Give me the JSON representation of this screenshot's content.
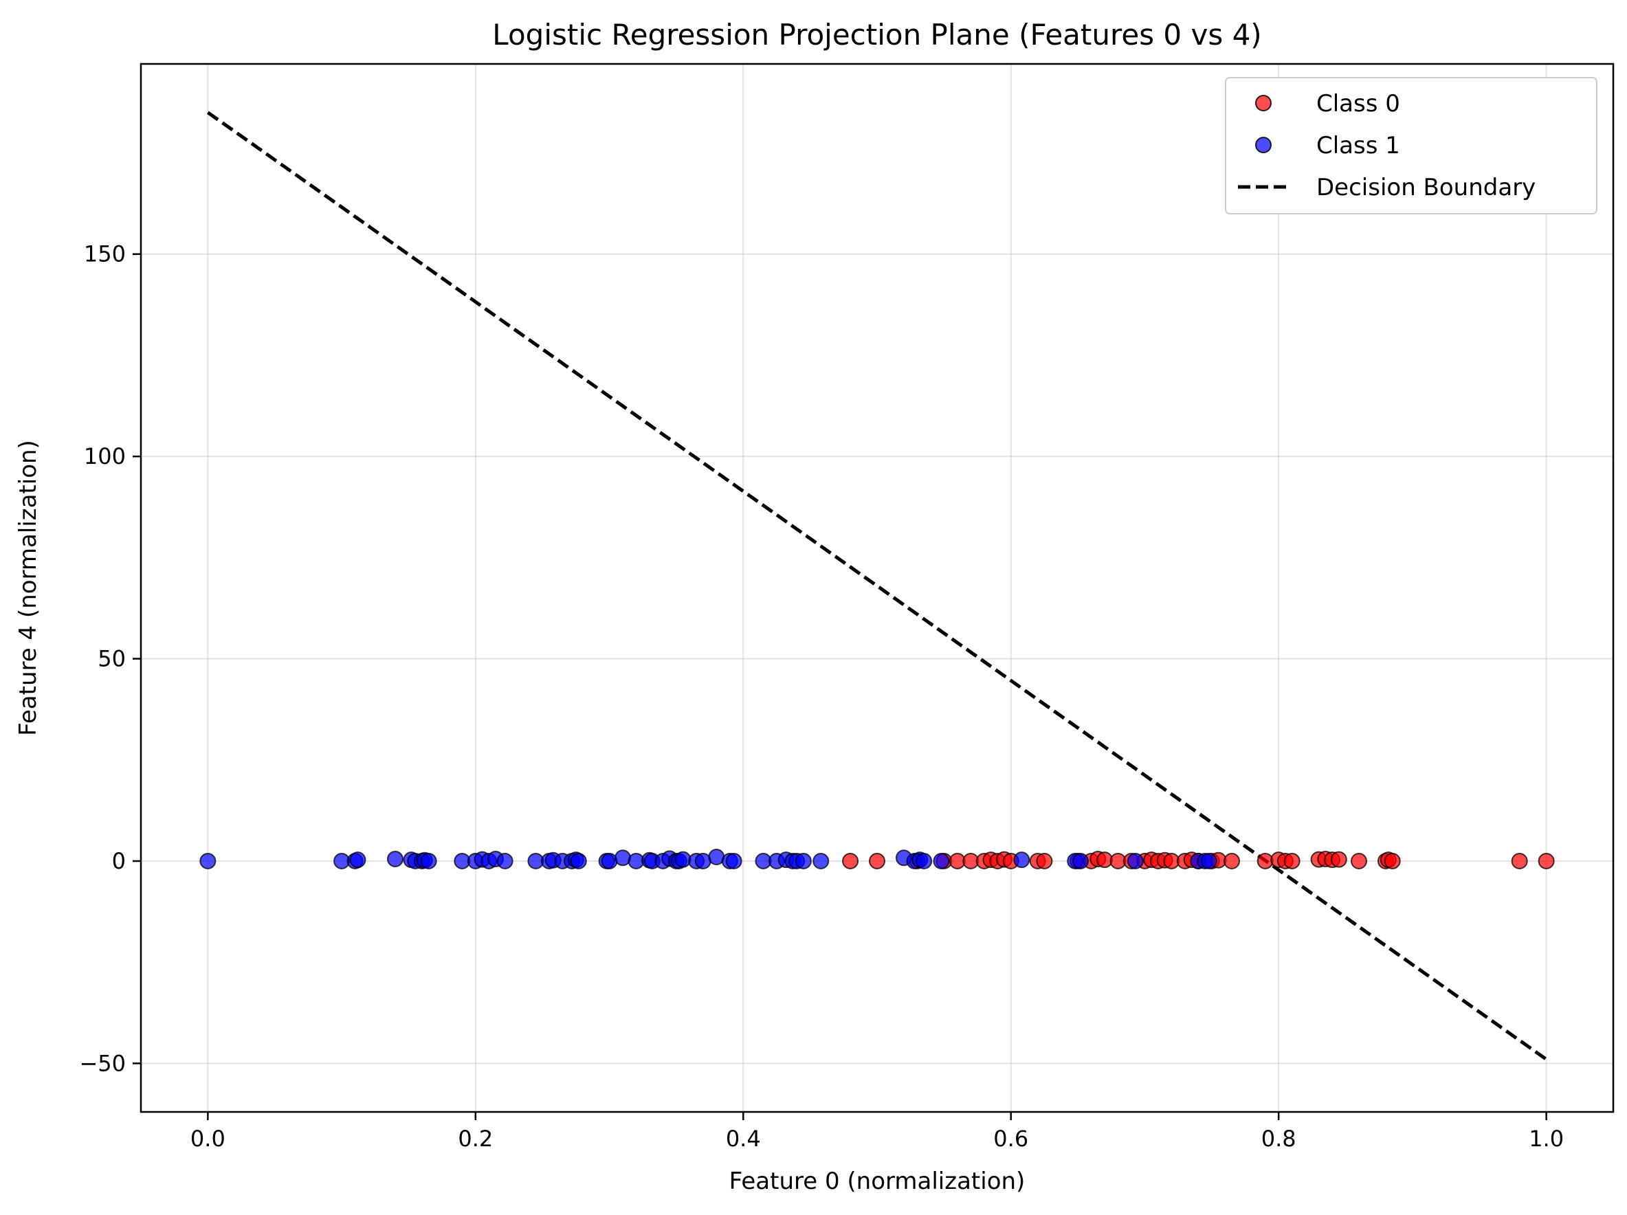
{
  "chart_data": {
    "type": "scatter",
    "title": "Logistic Regression Projection Plane (Features 0 vs 4)",
    "xlabel": "Feature 0 (normalization)",
    "ylabel": "Feature 4 (normalization)",
    "xlim": [
      -0.05,
      1.05
    ],
    "ylim": [
      -62,
      197
    ],
    "xticks": [
      0.0,
      0.2,
      0.4,
      0.6,
      0.8,
      1.0
    ],
    "xtick_labels": [
      "0.0",
      "0.2",
      "0.4",
      "0.6",
      "0.8",
      "1.0"
    ],
    "yticks": [
      -50,
      0,
      50,
      100,
      150
    ],
    "ytick_labels": [
      "−50",
      "0",
      "50",
      "100",
      "150"
    ],
    "grid": true,
    "legend_position": "top-right",
    "series": [
      {
        "name": "Class 0",
        "color": "#ff0000",
        "marker": "circle",
        "points": [
          [
            0.48,
            0
          ],
          [
            0.5,
            0
          ],
          [
            0.53,
            0
          ],
          [
            0.55,
            0
          ],
          [
            0.56,
            0
          ],
          [
            0.57,
            0
          ],
          [
            0.58,
            0
          ],
          [
            0.585,
            0.3
          ],
          [
            0.59,
            0
          ],
          [
            0.595,
            0.4
          ],
          [
            0.6,
            0
          ],
          [
            0.62,
            0
          ],
          [
            0.625,
            0
          ],
          [
            0.65,
            0
          ],
          [
            0.66,
            0
          ],
          [
            0.665,
            0.5
          ],
          [
            0.67,
            0.3
          ],
          [
            0.68,
            0
          ],
          [
            0.69,
            0
          ],
          [
            0.7,
            0
          ],
          [
            0.705,
            0.3
          ],
          [
            0.71,
            0
          ],
          [
            0.715,
            0.2
          ],
          [
            0.72,
            0
          ],
          [
            0.73,
            0
          ],
          [
            0.735,
            0.3
          ],
          [
            0.74,
            0
          ],
          [
            0.75,
            0
          ],
          [
            0.755,
            0.2
          ],
          [
            0.765,
            0
          ],
          [
            0.79,
            0
          ],
          [
            0.8,
            0.3
          ],
          [
            0.805,
            0
          ],
          [
            0.81,
            0
          ],
          [
            0.83,
            0.4
          ],
          [
            0.835,
            0.5
          ],
          [
            0.84,
            0.3
          ],
          [
            0.845,
            0.4
          ],
          [
            0.86,
            0
          ],
          [
            0.88,
            0
          ],
          [
            0.882,
            0.3
          ],
          [
            0.885,
            0
          ],
          [
            0.98,
            0
          ],
          [
            1.0,
            0
          ]
        ]
      },
      {
        "name": "Class 1",
        "color": "#0000ff",
        "marker": "circle",
        "points": [
          [
            0.0,
            0
          ],
          [
            0.1,
            0
          ],
          [
            0.11,
            0
          ],
          [
            0.112,
            0.3
          ],
          [
            0.14,
            0.5
          ],
          [
            0.152,
            0.3
          ],
          [
            0.155,
            0
          ],
          [
            0.16,
            0
          ],
          [
            0.162,
            0.2
          ],
          [
            0.165,
            0
          ],
          [
            0.19,
            0
          ],
          [
            0.2,
            0
          ],
          [
            0.205,
            0.4
          ],
          [
            0.21,
            0
          ],
          [
            0.215,
            0.5
          ],
          [
            0.222,
            0
          ],
          [
            0.245,
            0
          ],
          [
            0.255,
            0
          ],
          [
            0.258,
            0.2
          ],
          [
            0.265,
            0
          ],
          [
            0.272,
            0
          ],
          [
            0.275,
            0.3
          ],
          [
            0.277,
            0
          ],
          [
            0.298,
            0
          ],
          [
            0.3,
            0
          ],
          [
            0.31,
            0.8
          ],
          [
            0.32,
            0
          ],
          [
            0.33,
            0.2
          ],
          [
            0.332,
            0
          ],
          [
            0.34,
            0
          ],
          [
            0.345,
            0.6
          ],
          [
            0.35,
            0
          ],
          [
            0.352,
            0
          ],
          [
            0.355,
            0.4
          ],
          [
            0.365,
            0
          ],
          [
            0.37,
            0
          ],
          [
            0.38,
            1.0
          ],
          [
            0.39,
            0
          ],
          [
            0.393,
            0
          ],
          [
            0.415,
            0
          ],
          [
            0.425,
            0
          ],
          [
            0.432,
            0.3
          ],
          [
            0.437,
            0
          ],
          [
            0.44,
            0
          ],
          [
            0.445,
            0
          ],
          [
            0.458,
            0
          ],
          [
            0.52,
            0.8
          ],
          [
            0.528,
            0
          ],
          [
            0.532,
            0.3
          ],
          [
            0.535,
            0
          ],
          [
            0.548,
            0
          ],
          [
            0.608,
            0.3
          ],
          [
            0.648,
            0
          ],
          [
            0.652,
            0
          ],
          [
            0.693,
            0
          ],
          [
            0.74,
            0
          ],
          [
            0.745,
            0
          ],
          [
            0.748,
            0
          ]
        ]
      }
    ],
    "lines": [
      {
        "name": "Decision Boundary",
        "color": "#000000",
        "style": "dashed",
        "x": [
          0.0,
          1.0
        ],
        "y": [
          185,
          -49
        ]
      }
    ],
    "legend": [
      {
        "label": "Class 0",
        "kind": "marker",
        "color": "#ff0000"
      },
      {
        "label": "Class 1",
        "kind": "marker",
        "color": "#0000ff"
      },
      {
        "label": "Decision Boundary",
        "kind": "dashed-line",
        "color": "#000000"
      }
    ]
  }
}
